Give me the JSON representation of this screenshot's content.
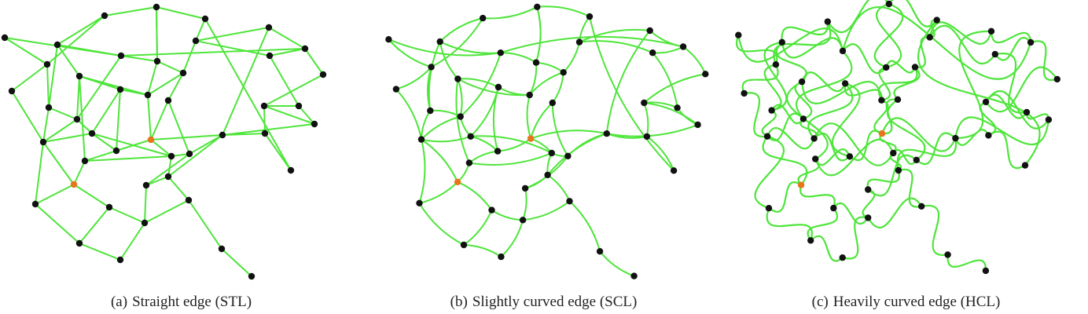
{
  "figure": {
    "panels": [
      {
        "id": "a",
        "tag": "(a)",
        "caption": "Straight edge (STL)",
        "edge_style": "straight"
      },
      {
        "id": "b",
        "tag": "(b)",
        "caption": "Slightly curved edge (SCL)",
        "edge_style": "slightly-curved"
      },
      {
        "id": "c",
        "tag": "(c)",
        "caption": "Heavily curved edge (HCL)",
        "edge_style": "heavily-curved"
      }
    ],
    "colors": {
      "edge": "#4ee53a",
      "node": "#111111",
      "highlight_node": "#e8741c"
    }
  }
}
